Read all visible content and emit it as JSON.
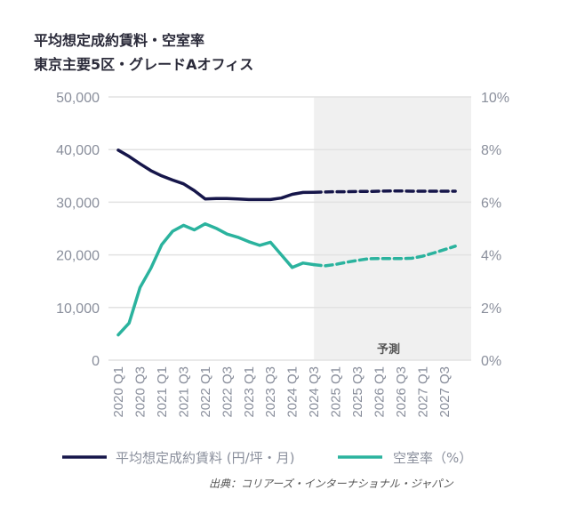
{
  "title": "平均想定成約賃料・空室率",
  "subtitle": "東京主要5区・グレードAオフィス",
  "source": "出典：コリアーズ・インターナショナル・ジャパン",
  "chart_data": {
    "type": "line",
    "title": "平均想定成約賃料・空室率",
    "subtitle": "東京主要5区・グレードAオフィス",
    "x": [
      "2020 Q1",
      "2020 Q2",
      "2020 Q3",
      "2020 Q4",
      "2021 Q1",
      "2021 Q2",
      "2021 Q3",
      "2021 Q4",
      "2022 Q1",
      "2022 Q2",
      "2022 Q3",
      "2022 Q4",
      "2023 Q1",
      "2023 Q2",
      "2023 Q3",
      "2023 Q4",
      "2024 Q1",
      "2024 Q2",
      "2024 Q3",
      "2024 Q4",
      "2025 Q1",
      "2025 Q2",
      "2025 Q3",
      "2025 Q4",
      "2026 Q1",
      "2026 Q2",
      "2026 Q3",
      "2026 Q4",
      "2027 Q1",
      "2027 Q2",
      "2027 Q3",
      "2027 Q4"
    ],
    "x_tick_labels": [
      "2020 Q1",
      "2020 Q3",
      "2021 Q1",
      "2021 Q3",
      "2022 Q1",
      "2022 Q3",
      "2023 Q1",
      "2023 Q3",
      "2024 Q1",
      "2024 Q3",
      "2025 Q1",
      "2025 Q3",
      "2026 Q1",
      "2026 Q3",
      "2027 Q1",
      "2027 Q3"
    ],
    "forecast_start_index": 18,
    "forecast_label": "予測",
    "series": [
      {
        "name": "平均想定成約賃料 (円/坪・月)",
        "axis": "left",
        "color": "#16164a",
        "values": [
          39900,
          38700,
          37300,
          36000,
          35000,
          34200,
          33500,
          32200,
          30600,
          30700,
          30700,
          30600,
          30500,
          30500,
          30500,
          30800,
          31500,
          31850,
          31900,
          31950,
          32000,
          32000,
          32050,
          32050,
          32100,
          32150,
          32150,
          32100,
          32100,
          32100,
          32100,
          32100
        ]
      },
      {
        "name": "空室率（%）",
        "axis": "right",
        "color": "#2bb39e",
        "values": [
          0.96,
          1.41,
          2.76,
          3.49,
          4.39,
          4.9,
          5.12,
          4.95,
          5.18,
          5.01,
          4.79,
          4.67,
          4.5,
          4.36,
          4.48,
          4.0,
          3.52,
          3.69,
          3.63,
          3.58,
          3.64,
          3.72,
          3.79,
          3.85,
          3.86,
          3.86,
          3.86,
          3.87,
          3.95,
          4.07,
          4.2,
          4.33
        ]
      }
    ],
    "y_left": {
      "ticks": [
        "0",
        "10,000",
        "20,000",
        "30,000",
        "40,000",
        "50,000"
      ],
      "range": [
        0,
        50000
      ]
    },
    "y_right": {
      "ticks": [
        "0%",
        "2%",
        "4%",
        "6%",
        "8%",
        "10%"
      ],
      "range": [
        0,
        10
      ]
    },
    "grid": true,
    "legend_placement": "bottom"
  }
}
